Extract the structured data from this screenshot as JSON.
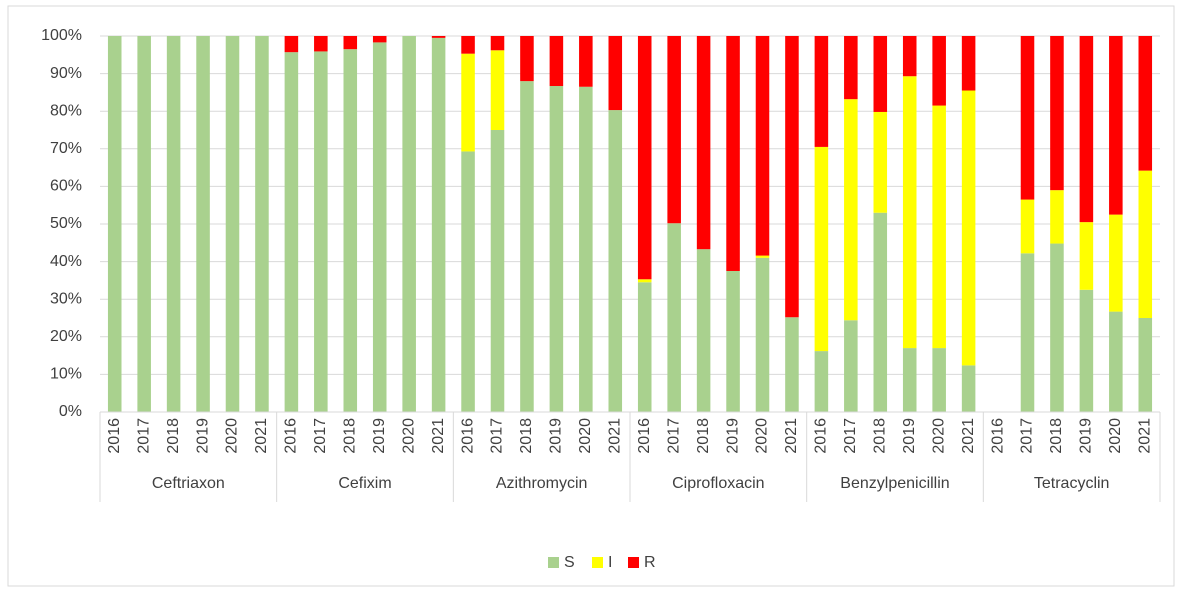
{
  "chart_data": {
    "type": "stacked_bar",
    "groups": [
      "Ceftriaxon",
      "Cefixim",
      "Azithromycin",
      "Ciprofloxacin",
      "Benzylpenicillin",
      "Tetracyclin"
    ],
    "categories": [
      "2016",
      "2017",
      "2018",
      "2019",
      "2020",
      "2021",
      "2016",
      "2017",
      "2018",
      "2019",
      "2020",
      "2021",
      "2016",
      "2017",
      "2018",
      "2019",
      "2020",
      "2021",
      "2016",
      "2017",
      "2018",
      "2019",
      "2020",
      "2021",
      "2016",
      "2017",
      "2018",
      "2019",
      "2020",
      "2021",
      "2016",
      "2017",
      "2018",
      "2019",
      "2020",
      "2021"
    ],
    "series": [
      {
        "name": "S",
        "color": "#a9d18e",
        "values": [
          100,
          100,
          100,
          100,
          100,
          100,
          95.7,
          95.9,
          96.5,
          98.3,
          100,
          99.5,
          69.3,
          75,
          88,
          86.7,
          86.5,
          80.3,
          34.5,
          50.2,
          43.3,
          37.5,
          41,
          25.2,
          16.2,
          24.4,
          53,
          17,
          17,
          12.4,
          null,
          42.2,
          44.8,
          32.5,
          26.7,
          25
        ]
      },
      {
        "name": "I",
        "color": "#ffff00",
        "values": [
          0,
          0,
          0,
          0,
          0,
          0,
          0,
          0,
          0,
          0,
          0,
          0,
          26,
          21.2,
          0,
          0,
          0,
          0,
          0.8,
          0,
          0,
          0,
          0.6,
          0,
          54.3,
          58.8,
          26.8,
          72.3,
          64.5,
          73.1,
          null,
          14.3,
          14.2,
          18,
          25.8,
          39.2
        ]
      },
      {
        "name": "R",
        "color": "#ff0000",
        "values": [
          0,
          0,
          0,
          0,
          0,
          0,
          4.3,
          4.1,
          3.5,
          1.7,
          0,
          0.5,
          4.7,
          3.8,
          12,
          13.3,
          13.5,
          19.7,
          64.7,
          49.8,
          56.7,
          62.5,
          58.4,
          74.8,
          29.5,
          16.8,
          20.2,
          10.7,
          18.5,
          14.5,
          null,
          43.5,
          41,
          49.5,
          47.5,
          35.8
        ]
      }
    ],
    "ylim": [
      0,
      100
    ],
    "yticks": [
      {
        "value": 0,
        "label": "0%"
      },
      {
        "value": 10,
        "label": "10%"
      },
      {
        "value": 20,
        "label": "20%"
      },
      {
        "value": 30,
        "label": "30%"
      },
      {
        "value": 40,
        "label": "40%"
      },
      {
        "value": 50,
        "label": "50%"
      },
      {
        "value": 60,
        "label": "60%"
      },
      {
        "value": 70,
        "label": "70%"
      },
      {
        "value": 80,
        "label": "80%"
      },
      {
        "value": 90,
        "label": "90%"
      },
      {
        "value": 100,
        "label": "100%"
      }
    ],
    "grid": true,
    "legend": "bottom"
  }
}
